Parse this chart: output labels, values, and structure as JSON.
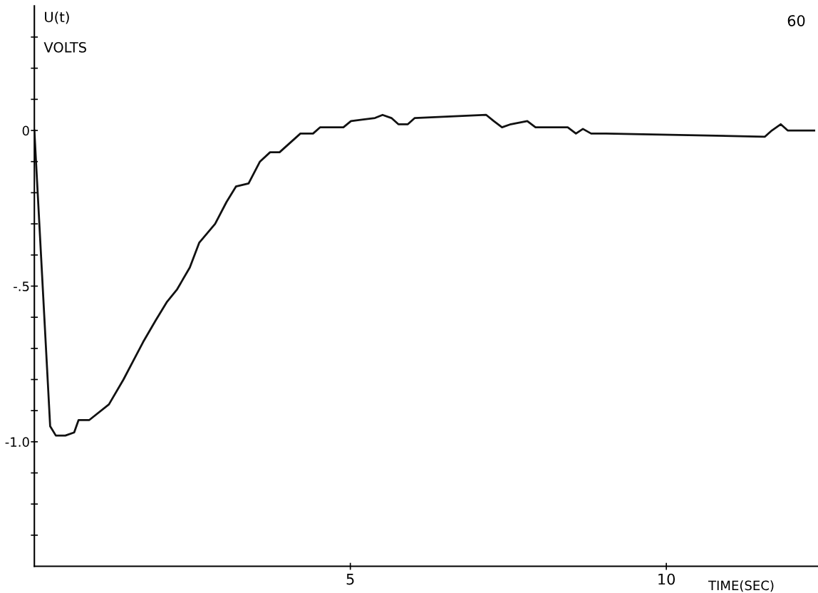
{
  "chart_data": {
    "type": "line",
    "xlabel": "TIME(SEC)",
    "ylabel": "U(t)\nVOLTS",
    "annotations": [
      "60"
    ],
    "xlim": [
      0,
      12.4
    ],
    "xticks": [
      5,
      10
    ],
    "ylim": [
      -1.4,
      0.4
    ],
    "yticks": [
      {
        "value": 0.3,
        "label": null
      },
      {
        "value": 0.2,
        "label": null
      },
      {
        "value": 0.1,
        "label": null
      },
      0,
      {
        "value": -0.1,
        "label": null
      },
      {
        "value": -0.2,
        "label": null
      },
      {
        "value": -0.3,
        "label": null
      },
      {
        "value": -0.4,
        "label": null
      },
      {
        "value": -0.5,
        "label": "-.5"
      },
      {
        "value": -0.6,
        "label": null
      },
      {
        "value": -0.7,
        "label": null
      },
      {
        "value": -0.8,
        "label": null
      },
      {
        "value": -0.9,
        "label": null
      },
      {
        "value": -1.0,
        "label": "-1.0"
      },
      {
        "value": -1.1,
        "label": null
      },
      {
        "value": -1.2,
        "label": null
      },
      {
        "value": -1.3,
        "label": null
      }
    ],
    "grid": false,
    "legend": false,
    "series": [
      {
        "color": "#111111",
        "x": [
          0,
          0.25,
          0.34,
          0.49,
          0.63,
          0.7,
          0.87,
          1.18,
          1.41,
          1.72,
          1.92,
          2.1,
          2.26,
          2.46,
          2.61,
          2.86,
          3.04,
          3.19,
          3.39,
          3.57,
          3.73,
          3.88,
          3.99,
          4.21,
          4.41,
          4.52,
          4.89,
          5.01,
          5.39,
          5.51,
          5.65,
          5.76,
          5.91,
          6.02,
          7.15,
          7.27,
          7.4,
          7.54,
          7.8,
          7.93,
          8.44,
          8.57,
          8.68,
          8.81,
          9.04,
          11.56,
          11.67,
          11.81,
          11.92,
          12.34
        ],
        "values": [
          0,
          -0.95,
          -0.98,
          -0.98,
          -0.97,
          -0.93,
          -0.93,
          -0.88,
          -0.8,
          -0.68,
          -0.61,
          -0.55,
          -0.51,
          -0.44,
          -0.36,
          -0.3,
          -0.23,
          -0.18,
          -0.17,
          -0.1,
          -0.07,
          -0.07,
          -0.05,
          -0.01,
          -0.01,
          0.01,
          0.01,
          0.03,
          0.04,
          0.05,
          0.04,
          0.02,
          0.02,
          0.04,
          0.05,
          0.03,
          0.01,
          0.02,
          0.03,
          0.01,
          0.01,
          -0.01,
          0.005,
          -0.01,
          -0.01,
          -0.02,
          0.0,
          0.02,
          0.0,
          0.0
        ]
      }
    ]
  }
}
